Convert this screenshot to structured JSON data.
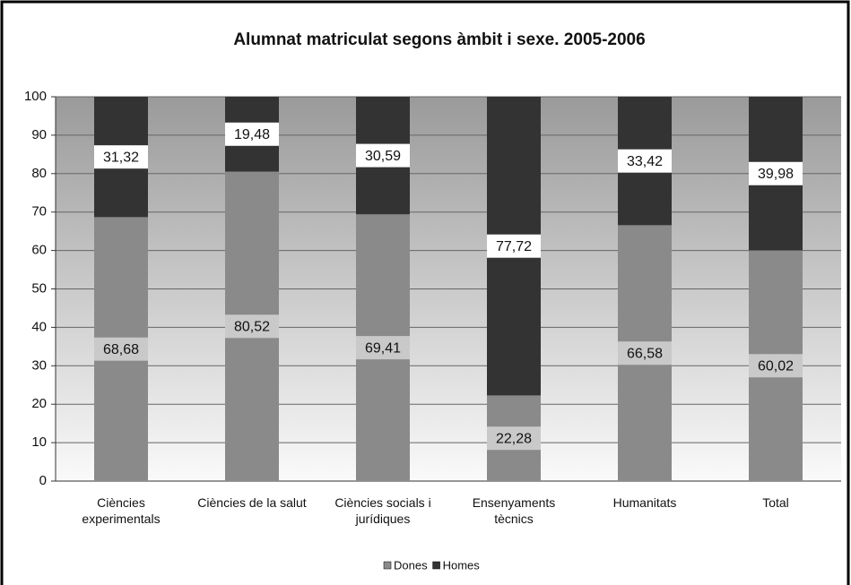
{
  "chart_data": {
    "type": "stacked_bar",
    "title": "Alumnat matriculat segons àmbit i sexe. 2005-2006",
    "categories": [
      "Ciències experimentals",
      "Ciències de la salut",
      "Ciències socials i jurídiques",
      "Ensenyaments tècnics",
      "Humanitats",
      "Total"
    ],
    "series": [
      {
        "name": "Dones",
        "color": "#8a8a8a",
        "values": [
          68.68,
          80.52,
          69.41,
          22.28,
          66.58,
          60.02
        ],
        "value_labels": [
          "68,68",
          "80,52",
          "69,41",
          "22,28",
          "66,58",
          "60,02"
        ]
      },
      {
        "name": "Homes",
        "color": "#333333",
        "values": [
          31.32,
          19.48,
          30.59,
          77.72,
          33.42,
          39.98
        ],
        "value_labels": [
          "31,32",
          "19,48",
          "30,59",
          "77,72",
          "33,42",
          "39,98"
        ]
      }
    ],
    "ylim": [
      0,
      100
    ],
    "yticks": [
      0,
      10,
      20,
      30,
      40,
      50,
      60,
      70,
      80,
      90,
      100
    ],
    "grid": true,
    "legend": "bottom"
  }
}
